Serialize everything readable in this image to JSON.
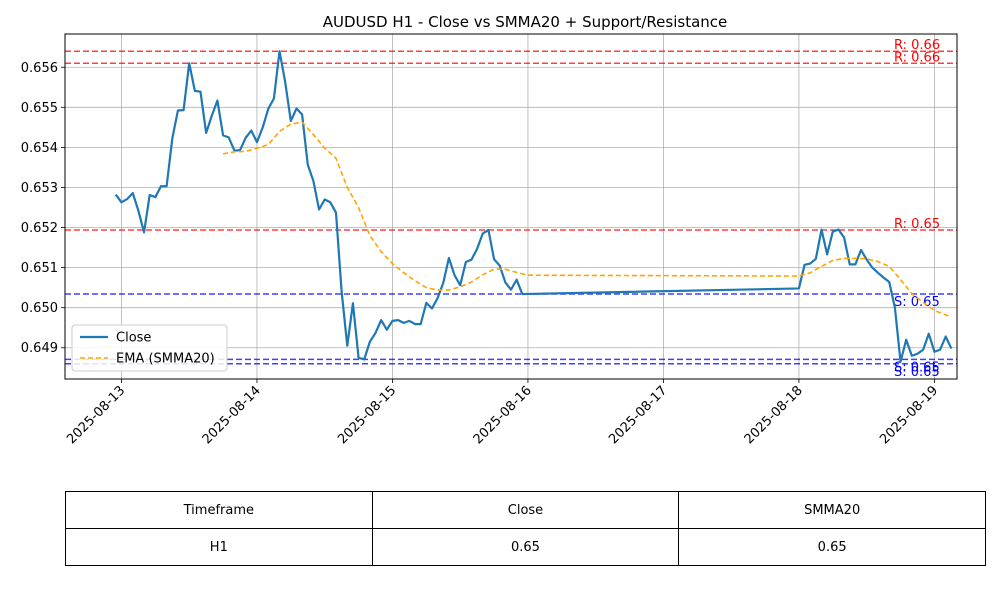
{
  "chart_data": {
    "type": "line",
    "title": "AUDUSD H1 - Close vs SMMA20 + Support/Resistance",
    "xlabel": "",
    "ylabel": "",
    "xlim": [
      "2025-08-12 14:00",
      "2025-08-19 04:00"
    ],
    "ylim": [
      0.64822,
      0.65683
    ],
    "x_ticks": [
      "2025-08-13",
      "2025-08-14",
      "2025-08-15",
      "2025-08-16",
      "2025-08-17",
      "2025-08-18",
      "2025-08-19"
    ],
    "y_ticks": [
      "0.649",
      "0.650",
      "0.651",
      "0.652",
      "0.653",
      "0.654",
      "0.655",
      "0.656"
    ],
    "grid": true,
    "legend": "lower-left",
    "series": [
      {
        "name": "Close",
        "color": "#1f77b4",
        "style": "solid",
        "points": [
          [
            "2025-08-12 23:00",
            0.65282
          ],
          [
            "2025-08-13 00:00",
            0.65263
          ],
          [
            "2025-08-13 01:00",
            0.65271
          ],
          [
            "2025-08-13 02:00",
            0.65286
          ],
          [
            "2025-08-13 03:00",
            0.65242
          ],
          [
            "2025-08-13 04:00",
            0.65188
          ],
          [
            "2025-08-13 05:00",
            0.65281
          ],
          [
            "2025-08-13 06:00",
            0.65276
          ],
          [
            "2025-08-13 07:00",
            0.65303
          ],
          [
            "2025-08-13 08:00",
            0.65303
          ],
          [
            "2025-08-13 09:00",
            0.65422
          ],
          [
            "2025-08-13 10:00",
            0.65492
          ],
          [
            "2025-08-13 11:00",
            0.65493
          ],
          [
            "2025-08-13 12:00",
            0.6561
          ],
          [
            "2025-08-13 13:00",
            0.65541
          ],
          [
            "2025-08-13 14:00",
            0.65539
          ],
          [
            "2025-08-13 15:00",
            0.65436
          ],
          [
            "2025-08-13 16:00",
            0.65479
          ],
          [
            "2025-08-13 17:00",
            0.65517
          ],
          [
            "2025-08-13 18:00",
            0.6543
          ],
          [
            "2025-08-13 19:00",
            0.65425
          ],
          [
            "2025-08-13 20:00",
            0.65392
          ],
          [
            "2025-08-13 21:00",
            0.65393
          ],
          [
            "2025-08-13 22:00",
            0.65424
          ],
          [
            "2025-08-13 23:00",
            0.65442
          ],
          [
            "2025-08-14 00:00",
            0.65413
          ],
          [
            "2025-08-14 01:00",
            0.65449
          ],
          [
            "2025-08-14 02:00",
            0.65496
          ],
          [
            "2025-08-14 03:00",
            0.65522
          ],
          [
            "2025-08-14 04:00",
            0.6564
          ],
          [
            "2025-08-14 05:00",
            0.65563
          ],
          [
            "2025-08-14 06:00",
            0.65466
          ],
          [
            "2025-08-14 07:00",
            0.65497
          ],
          [
            "2025-08-14 08:00",
            0.65482
          ],
          [
            "2025-08-14 09:00",
            0.65357
          ],
          [
            "2025-08-14 10:00",
            0.65316
          ],
          [
            "2025-08-14 11:00",
            0.65245
          ],
          [
            "2025-08-14 12:00",
            0.6527
          ],
          [
            "2025-08-14 13:00",
            0.65263
          ],
          [
            "2025-08-14 14:00",
            0.65237
          ],
          [
            "2025-08-14 15:00",
            0.6504
          ],
          [
            "2025-08-14 16:00",
            0.64905
          ],
          [
            "2025-08-14 17:00",
            0.65011
          ],
          [
            "2025-08-14 18:00",
            0.64875
          ],
          [
            "2025-08-14 19:00",
            0.64871
          ],
          [
            "2025-08-14 20:00",
            0.64915
          ],
          [
            "2025-08-14 21:00",
            0.64937
          ],
          [
            "2025-08-14 22:00",
            0.64969
          ],
          [
            "2025-08-14 23:00",
            0.64945
          ],
          [
            "2025-08-15 00:00",
            0.64967
          ],
          [
            "2025-08-15 01:00",
            0.64969
          ],
          [
            "2025-08-15 02:00",
            0.64962
          ],
          [
            "2025-08-15 03:00",
            0.64967
          ],
          [
            "2025-08-15 04:00",
            0.64959
          ],
          [
            "2025-08-15 05:00",
            0.64959
          ],
          [
            "2025-08-15 06:00",
            0.65012
          ],
          [
            "2025-08-15 07:00",
            0.64998
          ],
          [
            "2025-08-15 08:00",
            0.65024
          ],
          [
            "2025-08-15 09:00",
            0.65062
          ],
          [
            "2025-08-15 10:00",
            0.65124
          ],
          [
            "2025-08-15 11:00",
            0.65081
          ],
          [
            "2025-08-15 12:00",
            0.65056
          ],
          [
            "2025-08-15 13:00",
            0.65114
          ],
          [
            "2025-08-15 14:00",
            0.6512
          ],
          [
            "2025-08-15 15:00",
            0.65147
          ],
          [
            "2025-08-15 16:00",
            0.65185
          ],
          [
            "2025-08-15 17:00",
            0.65194
          ],
          [
            "2025-08-15 18:00",
            0.65121
          ],
          [
            "2025-08-15 19:00",
            0.65105
          ],
          [
            "2025-08-15 20:00",
            0.65063
          ],
          [
            "2025-08-15 21:00",
            0.65045
          ],
          [
            "2025-08-15 22:00",
            0.6507
          ],
          [
            "2025-08-15 23:00",
            0.65034
          ],
          [
            "2025-08-18 00:00",
            0.65048
          ],
          [
            "2025-08-18 01:00",
            0.65107
          ],
          [
            "2025-08-18 02:00",
            0.6511
          ],
          [
            "2025-08-18 03:00",
            0.65122
          ],
          [
            "2025-08-18 04:00",
            0.65195
          ],
          [
            "2025-08-18 05:00",
            0.65133
          ],
          [
            "2025-08-18 06:00",
            0.6519
          ],
          [
            "2025-08-18 07:00",
            0.65195
          ],
          [
            "2025-08-18 08:00",
            0.65175
          ],
          [
            "2025-08-18 09:00",
            0.65108
          ],
          [
            "2025-08-18 10:00",
            0.65108
          ],
          [
            "2025-08-18 11:00",
            0.65144
          ],
          [
            "2025-08-18 12:00",
            0.6512
          ],
          [
            "2025-08-18 13:00",
            0.651
          ],
          [
            "2025-08-18 14:00",
            0.65087
          ],
          [
            "2025-08-18 15:00",
            0.65075
          ],
          [
            "2025-08-18 16:00",
            0.65064
          ],
          [
            "2025-08-18 17:00",
            0.65
          ],
          [
            "2025-08-18 18:00",
            0.64865
          ],
          [
            "2025-08-18 19:00",
            0.6492
          ],
          [
            "2025-08-18 20:00",
            0.6488
          ],
          [
            "2025-08-18 21:00",
            0.64885
          ],
          [
            "2025-08-18 22:00",
            0.64895
          ],
          [
            "2025-08-18 23:00",
            0.64935
          ],
          [
            "2025-08-19 00:00",
            0.6489
          ],
          [
            "2025-08-19 01:00",
            0.64895
          ],
          [
            "2025-08-19 02:00",
            0.64928
          ],
          [
            "2025-08-19 03:00",
            0.64898
          ]
        ]
      },
      {
        "name": "EMA (SMMA20)",
        "color": "#ffa500",
        "style": "dashed",
        "points": [
          [
            "2025-08-13 18:00",
            0.65384
          ],
          [
            "2025-08-13 20:00",
            0.65389
          ],
          [
            "2025-08-13 22:00",
            0.6539
          ],
          [
            "2025-08-14 00:00",
            0.65398
          ],
          [
            "2025-08-14 02:00",
            0.65407
          ],
          [
            "2025-08-14 04:00",
            0.6544
          ],
          [
            "2025-08-14 06:00",
            0.65458
          ],
          [
            "2025-08-14 08:00",
            0.65463
          ],
          [
            "2025-08-14 10:00",
            0.65432
          ],
          [
            "2025-08-14 12:00",
            0.65398
          ],
          [
            "2025-08-14 14:00",
            0.65373
          ],
          [
            "2025-08-14 16:00",
            0.653
          ],
          [
            "2025-08-14 18:00",
            0.6525
          ],
          [
            "2025-08-14 20:00",
            0.6518
          ],
          [
            "2025-08-14 22:00",
            0.6514
          ],
          [
            "2025-08-15 00:00",
            0.6511
          ],
          [
            "2025-08-15 02:00",
            0.65087
          ],
          [
            "2025-08-15 04:00",
            0.65067
          ],
          [
            "2025-08-15 06:00",
            0.6505
          ],
          [
            "2025-08-15 08:00",
            0.65044
          ],
          [
            "2025-08-15 10:00",
            0.65044
          ],
          [
            "2025-08-15 12:00",
            0.65052
          ],
          [
            "2025-08-15 14:00",
            0.65064
          ],
          [
            "2025-08-15 16:00",
            0.65082
          ],
          [
            "2025-08-15 18:00",
            0.65096
          ],
          [
            "2025-08-15 20:00",
            0.65096
          ],
          [
            "2025-08-15 22:00",
            0.65088
          ],
          [
            "2025-08-16 00:00",
            0.65081
          ],
          [
            "2025-08-18 00:00",
            0.65079
          ],
          [
            "2025-08-18 02:00",
            0.65087
          ],
          [
            "2025-08-18 04:00",
            0.65103
          ],
          [
            "2025-08-18 06:00",
            0.65118
          ],
          [
            "2025-08-18 08:00",
            0.65123
          ],
          [
            "2025-08-18 10:00",
            0.65123
          ],
          [
            "2025-08-18 12:00",
            0.65122
          ],
          [
            "2025-08-18 14:00",
            0.65115
          ],
          [
            "2025-08-18 16:00",
            0.65103
          ],
          [
            "2025-08-18 18:00",
            0.6507
          ],
          [
            "2025-08-18 20:00",
            0.65035
          ],
          [
            "2025-08-18 22:00",
            0.65013
          ],
          [
            "2025-08-19 00:00",
            0.64993
          ],
          [
            "2025-08-19 02:00",
            0.64982
          ],
          [
            "2025-08-19 03:00",
            0.64977
          ]
        ]
      }
    ],
    "levels": [
      {
        "kind": "resistance",
        "value": 0.6564,
        "label": "R: 0.66",
        "color": "#ff0000"
      },
      {
        "kind": "resistance",
        "value": 0.6561,
        "label": "R: 0.66",
        "color": "#ff0000"
      },
      {
        "kind": "resistance",
        "value": 0.65194,
        "label": "R: 0.65",
        "color": "#ff0000"
      },
      {
        "kind": "support",
        "value": 0.65034,
        "label": "S: 0.65",
        "color": "#0000ff"
      },
      {
        "kind": "support",
        "value": 0.64871,
        "label": "S: 0.65",
        "color": "#0000ff"
      },
      {
        "kind": "support",
        "value": 0.6486,
        "label": "S: 0.65",
        "color": "#0000ff"
      }
    ]
  },
  "table": {
    "headers": [
      "Timeframe",
      "Close",
      "SMMA20"
    ],
    "row": [
      "H1",
      "0.65",
      "0.65"
    ]
  }
}
